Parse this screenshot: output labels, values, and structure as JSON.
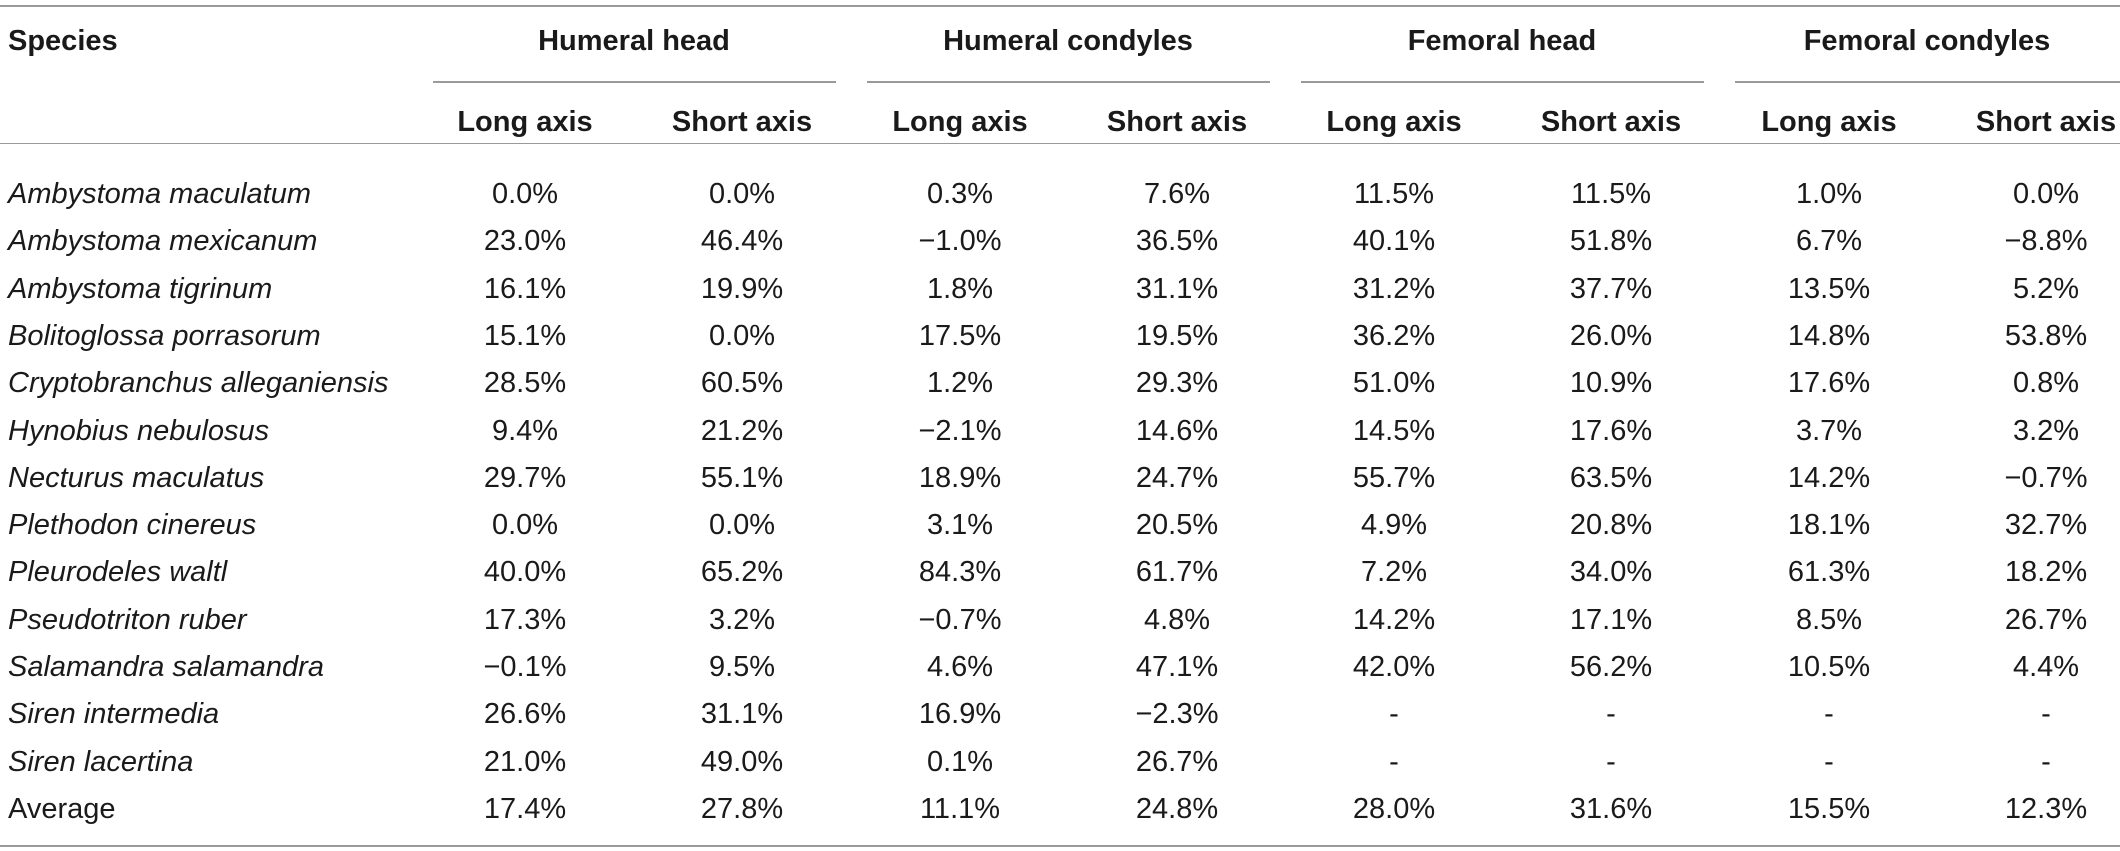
{
  "table": {
    "species_header": "Species",
    "groups": [
      {
        "label": "Humeral head"
      },
      {
        "label": "Humeral condyles"
      },
      {
        "label": "Femoral head"
      },
      {
        "label": "Femoral condyles"
      }
    ],
    "subheaders": [
      "Long axis",
      "Short axis",
      "Long axis",
      "Short axis",
      "Long axis",
      "Short axis",
      "Long axis",
      "Short axis"
    ],
    "rows": [
      {
        "species": "Ambystoma maculatum",
        "italic": true,
        "values": [
          "0.0%",
          "0.0%",
          "0.3%",
          "7.6%",
          "11.5%",
          "11.5%",
          "1.0%",
          "0.0%"
        ]
      },
      {
        "species": "Ambystoma mexicanum",
        "italic": true,
        "values": [
          "23.0%",
          "46.4%",
          "−1.0%",
          "36.5%",
          "40.1%",
          "51.8%",
          "6.7%",
          "−8.8%"
        ]
      },
      {
        "species": "Ambystoma tigrinum",
        "italic": true,
        "values": [
          "16.1%",
          "19.9%",
          "1.8%",
          "31.1%",
          "31.2%",
          "37.7%",
          "13.5%",
          "5.2%"
        ]
      },
      {
        "species": "Bolitoglossa porrasorum",
        "italic": true,
        "values": [
          "15.1%",
          "0.0%",
          "17.5%",
          "19.5%",
          "36.2%",
          "26.0%",
          "14.8%",
          "53.8%"
        ]
      },
      {
        "species": "Cryptobranchus alleganiensis",
        "italic": true,
        "values": [
          "28.5%",
          "60.5%",
          "1.2%",
          "29.3%",
          "51.0%",
          "10.9%",
          "17.6%",
          "0.8%"
        ]
      },
      {
        "species": "Hynobius nebulosus",
        "italic": true,
        "values": [
          "9.4%",
          "21.2%",
          "−2.1%",
          "14.6%",
          "14.5%",
          "17.6%",
          "3.7%",
          "3.2%"
        ]
      },
      {
        "species": "Necturus maculatus",
        "italic": true,
        "values": [
          "29.7%",
          "55.1%",
          "18.9%",
          "24.7%",
          "55.7%",
          "63.5%",
          "14.2%",
          "−0.7%"
        ]
      },
      {
        "species": "Plethodon cinereus",
        "italic": true,
        "values": [
          "0.0%",
          "0.0%",
          "3.1%",
          "20.5%",
          "4.9%",
          "20.8%",
          "18.1%",
          "32.7%"
        ]
      },
      {
        "species": "Pleurodeles waltl",
        "italic": true,
        "values": [
          "40.0%",
          "65.2%",
          "84.3%",
          "61.7%",
          "7.2%",
          "34.0%",
          "61.3%",
          "18.2%"
        ]
      },
      {
        "species": "Pseudotriton ruber",
        "italic": true,
        "values": [
          "17.3%",
          "3.2%",
          "−0.7%",
          "4.8%",
          "14.2%",
          "17.1%",
          "8.5%",
          "26.7%"
        ]
      },
      {
        "species": "Salamandra salamandra",
        "italic": true,
        "values": [
          "−0.1%",
          "9.5%",
          "4.6%",
          "47.1%",
          "42.0%",
          "56.2%",
          "10.5%",
          "4.4%"
        ]
      },
      {
        "species": "Siren intermedia",
        "italic": true,
        "values": [
          "26.6%",
          "31.1%",
          "16.9%",
          "−2.3%",
          "-",
          "-",
          "-",
          "-"
        ]
      },
      {
        "species": "Siren lacertina",
        "italic": true,
        "values": [
          "21.0%",
          "49.0%",
          "0.1%",
          "26.7%",
          "-",
          "-",
          "-",
          "-"
        ]
      },
      {
        "species": "Average",
        "italic": false,
        "values": [
          "17.4%",
          "27.8%",
          "11.1%",
          "24.8%",
          "28.0%",
          "31.6%",
          "15.5%",
          "12.3%"
        ]
      }
    ]
  }
}
